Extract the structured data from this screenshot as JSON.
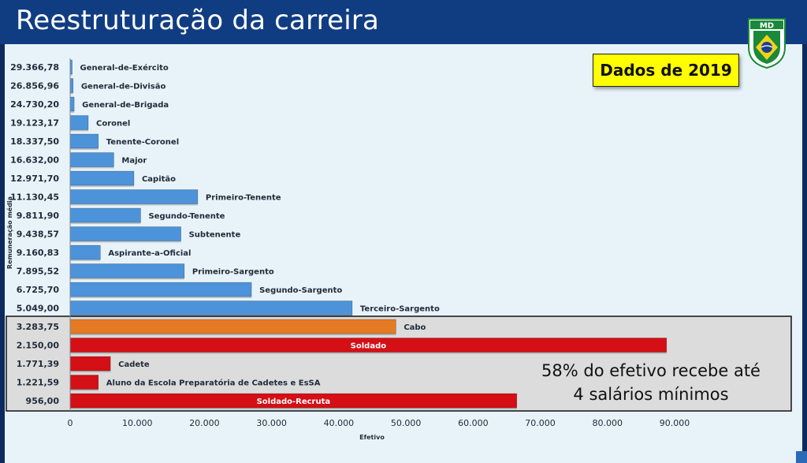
{
  "slide": {
    "title": "Reestruturação da carreira",
    "badge": "Dados de 2019",
    "logo_text": "MD",
    "annotation_line1": "58% do efetivo recebe até",
    "annotation_line2": "4 salários mínimos"
  },
  "colors": {
    "blue": "#4d93d9",
    "orange": "#e57a24",
    "red": "#d40f15",
    "highlight_box": "#dcdcdc",
    "header": "#103d82"
  },
  "chart_data": {
    "type": "bar",
    "orientation": "horizontal",
    "title": "",
    "xlabel": "Efetivo",
    "ylabel": "Remuneração média",
    "xlim": [
      0,
      90000
    ],
    "xticks": [
      0,
      10000,
      20000,
      30000,
      40000,
      50000,
      60000,
      70000,
      80000,
      90000
    ],
    "xtick_labels": [
      "0",
      "10.000",
      "20.000",
      "30.000",
      "40.000",
      "50.000",
      "60.000",
      "70.000",
      "80.000",
      "90.000"
    ],
    "grid": false,
    "categories": [
      "General-de-Exército",
      "General-de-Divisão",
      "General-de-Brigada",
      "Coronel",
      "Tenente-Coronel",
      "Major",
      "Capitão",
      "Primeiro-Tenente",
      "Segundo-Tenente",
      "Subtenente",
      "Aspirante-a-Oficial",
      "Primeiro-Sargento",
      "Segundo-Sargento",
      "Terceiro-Sargento",
      "Cabo",
      "Soldado",
      "Cadete",
      "Aluno da Escola Preparatória de Cadetes e EsSA",
      "Soldado-Recruta"
    ],
    "remuneracao_labels": [
      "29.366,78",
      "26.856,96",
      "24.730,20",
      "19.123,17",
      "18.337,50",
      "16.632,00",
      "12.971,70",
      "11.130,45",
      "9.811,90",
      "9.438,57",
      "9.160,83",
      "7.895,52",
      "6.725,70",
      "5.049,00",
      "3.283,75",
      "2.150,00",
      "1.771,39",
      "1.221,59",
      "956,00"
    ],
    "values": [
      300,
      450,
      600,
      2700,
      4200,
      6500,
      9500,
      19000,
      10500,
      16500,
      4500,
      17000,
      27000,
      42000,
      48500,
      88800,
      6000,
      4200,
      66500
    ],
    "bar_colors": [
      "blue",
      "blue",
      "blue",
      "blue",
      "blue",
      "blue",
      "blue",
      "blue",
      "blue",
      "blue",
      "blue",
      "blue",
      "blue",
      "blue",
      "orange",
      "red",
      "red",
      "red",
      "red"
    ],
    "label_inside": [
      false,
      false,
      false,
      false,
      false,
      false,
      false,
      false,
      false,
      false,
      false,
      false,
      false,
      false,
      false,
      true,
      false,
      false,
      true
    ],
    "highlight_group": [
      14,
      18
    ]
  }
}
